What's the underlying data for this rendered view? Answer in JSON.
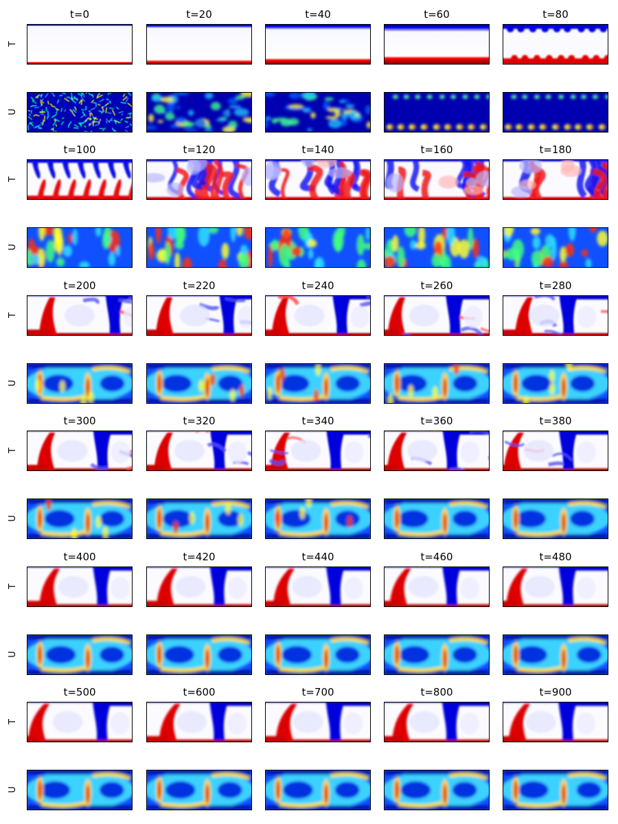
{
  "figure": {
    "row_labels": {
      "T": "T",
      "U": "U"
    },
    "time_labels": [
      "t=0",
      "t=20",
      "t=40",
      "t=60",
      "t=80",
      "t=100",
      "t=120",
      "t=140",
      "t=160",
      "t=180",
      "t=200",
      "t=220",
      "t=240",
      "t=260",
      "t=280",
      "t=300",
      "t=320",
      "t=340",
      "t=360",
      "t=380",
      "t=400",
      "t=420",
      "t=440",
      "t=460",
      "t=480",
      "t=500",
      "t=600",
      "t=700",
      "t=800",
      "t=900"
    ],
    "colormaps": {
      "T": [
        "#00008b",
        "#0000ff",
        "#ffffff",
        "#ff0000",
        "#8b0000"
      ],
      "U": [
        "#00007f",
        "#0000ff",
        "#00ffff",
        "#ffff00",
        "#ff0000",
        "#7f0000"
      ]
    }
  }
}
